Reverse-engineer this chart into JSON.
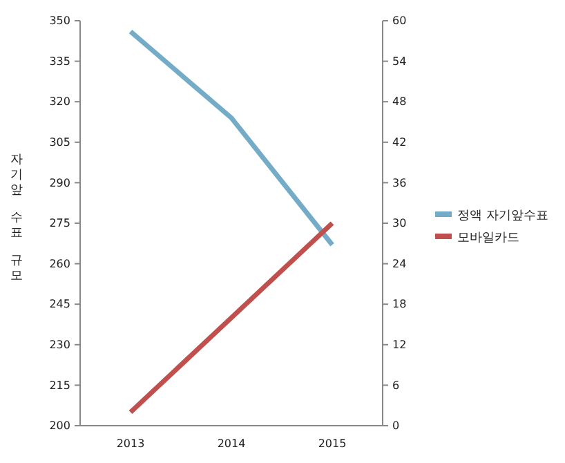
{
  "chart_data": {
    "type": "line",
    "ylabel": "자기앞 수표 규모",
    "categories": [
      "2013",
      "2014",
      "2015"
    ],
    "series": [
      {
        "name": "정액 자기앞수표",
        "color": "#74acc8",
        "values": [
          346,
          314,
          267
        ]
      },
      {
        "name": "모바일카드",
        "color": "#c0504d",
        "values": [
          2,
          16,
          30
        ],
        "axis": "y2"
      }
    ],
    "ylim": [
      200,
      350
    ],
    "yticks": [
      200,
      215,
      230,
      245,
      260,
      275,
      290,
      305,
      320,
      335,
      350
    ],
    "y2lim": [
      0,
      60
    ],
    "y2ticks": [
      0,
      6,
      12,
      18,
      24,
      30,
      36,
      42,
      48,
      54,
      60
    ],
    "grid": false,
    "legend": "right",
    "marker": "none",
    "line_style": "solid"
  }
}
